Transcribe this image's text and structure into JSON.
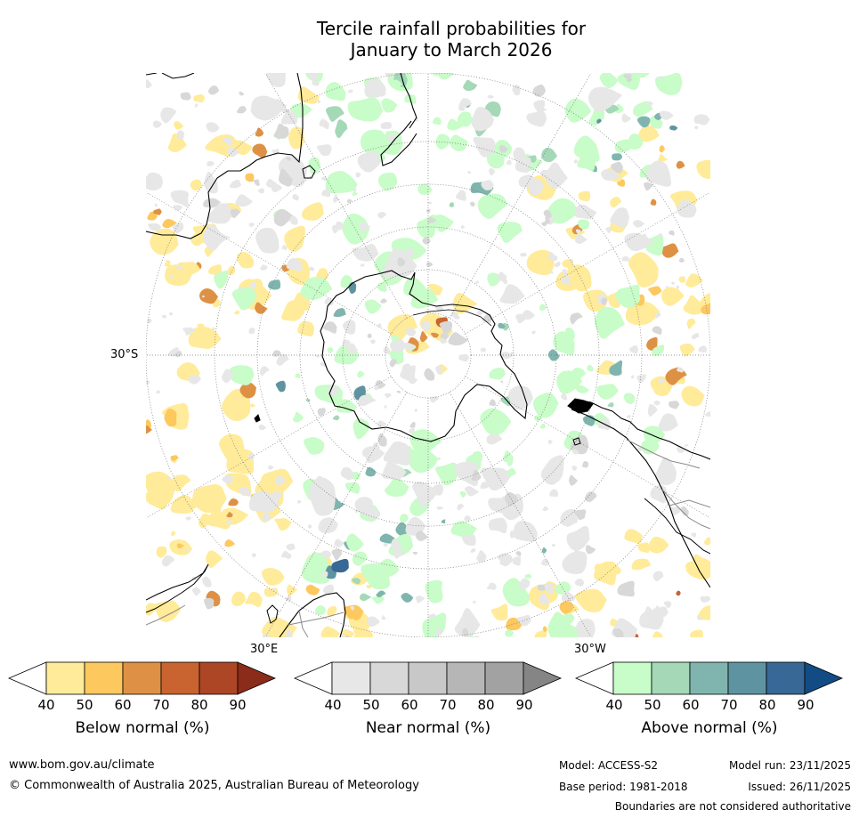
{
  "title": {
    "line1": "Tercile rainfall probabilities for",
    "line2": "January to March 2026"
  },
  "map": {
    "lat_labels": [
      "30°S"
    ],
    "lon_labels": [
      "30°E",
      "30°W"
    ],
    "colors": {
      "ocean": "#ffffff",
      "coast": "#000000",
      "boundary": "#8a8a8a",
      "graticule": "#777777"
    }
  },
  "legends": [
    {
      "label": "Below normal (%)",
      "ticks": [
        "40",
        "50",
        "60",
        "70",
        "80",
        "90"
      ],
      "colors": [
        "#ffeb99",
        "#fdc85e",
        "#de9144",
        "#c9632f",
        "#ad4625",
        "#8b2c1a"
      ]
    },
    {
      "label": "Near normal (%)",
      "ticks": [
        "40",
        "50",
        "60",
        "70",
        "80",
        "90"
      ],
      "colors": [
        "#e7e7e7",
        "#d8d8d8",
        "#c8c8c8",
        "#b6b6b6",
        "#a2a2a2",
        "#858585"
      ]
    },
    {
      "label": "Above normal (%)",
      "ticks": [
        "40",
        "50",
        "60",
        "70",
        "80",
        "90"
      ],
      "colors": [
        "#c8fcc8",
        "#a4d8b7",
        "#80b5af",
        "#5e94a1",
        "#386896",
        "#134c85"
      ]
    }
  ],
  "footer": {
    "website": "www.bom.gov.au/climate",
    "copyright": "© Commonwealth of Australia 2025, Australian Bureau of Meteorology",
    "model": "Model: ACCESS-S2",
    "base_period": "Base period: 1981-2018",
    "model_run": "Model run: 23/11/2025",
    "issued": "Issued: 26/11/2025",
    "disclaimer": "Boundaries are not considered authoritative"
  }
}
